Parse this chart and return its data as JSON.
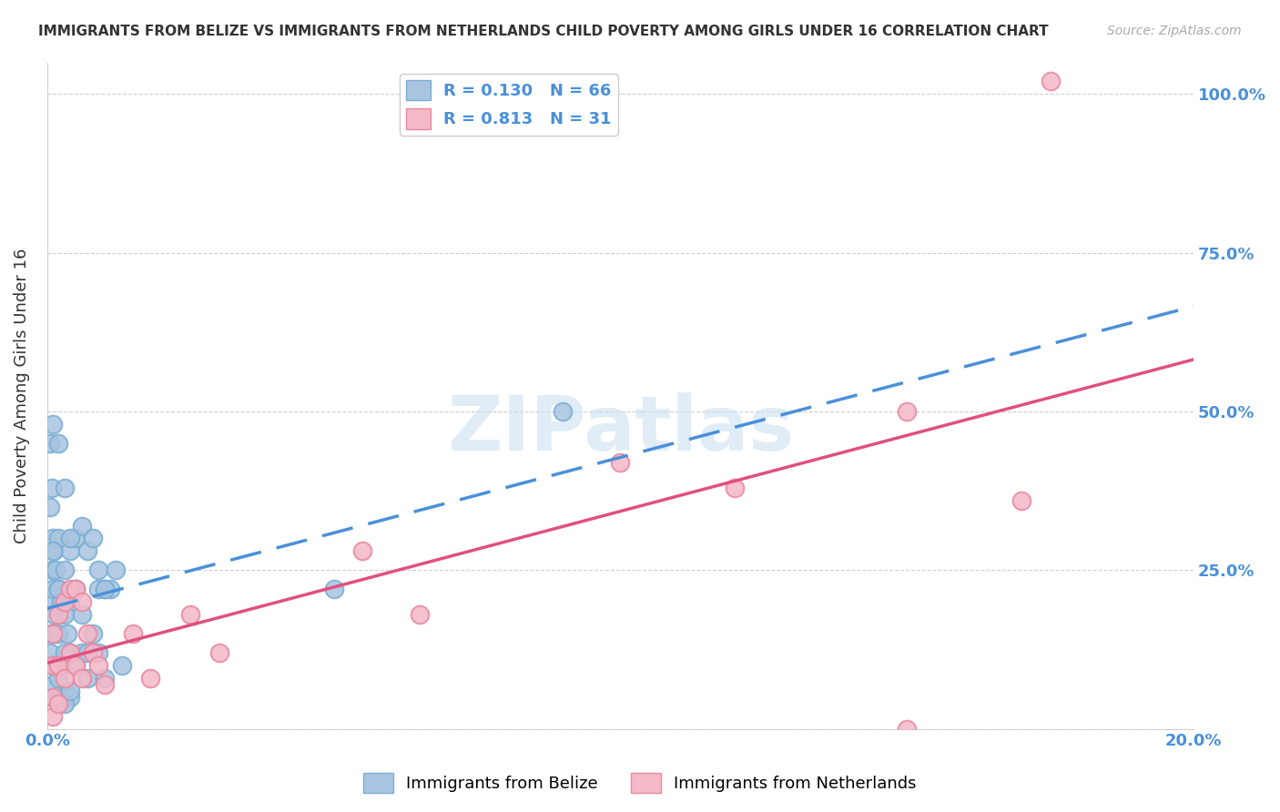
{
  "title": "IMMIGRANTS FROM BELIZE VS IMMIGRANTS FROM NETHERLANDS CHILD POVERTY AMONG GIRLS UNDER 16 CORRELATION CHART",
  "source": "Source: ZipAtlas.com",
  "ylabel": "Child Poverty Among Girls Under 16",
  "watermark": "ZIPatlas",
  "belize_color": "#a8c4e0",
  "belize_edge_color": "#7aafd4",
  "netherlands_color": "#f4b8c8",
  "netherlands_edge_color": "#e88aa0",
  "belize_line_color": "#4a90d9",
  "netherlands_line_color": "#e05080",
  "R_belize": 0.13,
  "N_belize": 66,
  "R_netherlands": 0.813,
  "N_netherlands": 31,
  "legend_label_belize": "Immigrants from Belize",
  "legend_label_netherlands": "Immigrants from Netherlands",
  "belize_x": [
    0.0005,
    0.0005,
    0.0005,
    0.0005,
    0.0008,
    0.0008,
    0.0008,
    0.001,
    0.001,
    0.001,
    0.001,
    0.001,
    0.0012,
    0.0012,
    0.0015,
    0.0015,
    0.002,
    0.002,
    0.002,
    0.002,
    0.002,
    0.0025,
    0.0025,
    0.003,
    0.003,
    0.003,
    0.003,
    0.0035,
    0.004,
    0.004,
    0.004,
    0.004,
    0.005,
    0.005,
    0.005,
    0.006,
    0.006,
    0.007,
    0.007,
    0.008,
    0.008,
    0.009,
    0.009,
    0.01,
    0.01,
    0.011,
    0.012,
    0.013,
    0.009,
    0.01,
    0.001,
    0.001,
    0.002,
    0.002,
    0.003,
    0.003,
    0.004,
    0.005,
    0.006,
    0.007,
    0.05,
    0.09,
    0.001,
    0.002,
    0.003,
    0.004
  ],
  "belize_y": [
    0.45,
    0.35,
    0.2,
    0.12,
    0.38,
    0.25,
    0.15,
    0.3,
    0.22,
    0.15,
    0.1,
    0.05,
    0.28,
    0.18,
    0.25,
    0.15,
    0.3,
    0.22,
    0.15,
    0.1,
    0.05,
    0.2,
    0.1,
    0.25,
    0.2,
    0.12,
    0.06,
    0.15,
    0.28,
    0.2,
    0.12,
    0.05,
    0.3,
    0.22,
    0.1,
    0.32,
    0.12,
    0.28,
    0.08,
    0.3,
    0.15,
    0.25,
    0.12,
    0.22,
    0.08,
    0.22,
    0.25,
    0.1,
    0.22,
    0.22,
    0.48,
    0.28,
    0.45,
    0.22,
    0.38,
    0.18,
    0.3,
    0.22,
    0.18,
    0.12,
    0.22,
    0.5,
    0.07,
    0.08,
    0.04,
    0.06
  ],
  "netherlands_x": [
    0.001,
    0.001,
    0.001,
    0.001,
    0.002,
    0.002,
    0.002,
    0.003,
    0.003,
    0.004,
    0.004,
    0.005,
    0.005,
    0.006,
    0.006,
    0.007,
    0.008,
    0.009,
    0.01,
    0.015,
    0.018,
    0.025,
    0.03,
    0.055,
    0.065,
    0.1,
    0.12,
    0.15,
    0.17,
    0.15,
    0.175
  ],
  "netherlands_y": [
    0.15,
    0.1,
    0.05,
    0.02,
    0.18,
    0.1,
    0.04,
    0.2,
    0.08,
    0.22,
    0.12,
    0.22,
    0.1,
    0.2,
    0.08,
    0.15,
    0.12,
    0.1,
    0.07,
    0.15,
    0.08,
    0.18,
    0.12,
    0.28,
    0.18,
    0.42,
    0.38,
    0.5,
    0.36,
    0.0,
    1.02
  ],
  "xmin": 0.0,
  "xmax": 0.2,
  "ymin": 0.0,
  "ymax": 1.05,
  "xtick_positions": [
    0.0,
    0.04,
    0.08,
    0.12,
    0.16,
    0.2
  ],
  "xtick_labels": [
    "0.0%",
    "",
    "",
    "",
    "",
    "20.0%"
  ],
  "ytick_positions": [
    0.0,
    0.25,
    0.5,
    0.75,
    1.0
  ],
  "ytick_labels": [
    "",
    "25.0%",
    "50.0%",
    "75.0%",
    "100.0%"
  ]
}
